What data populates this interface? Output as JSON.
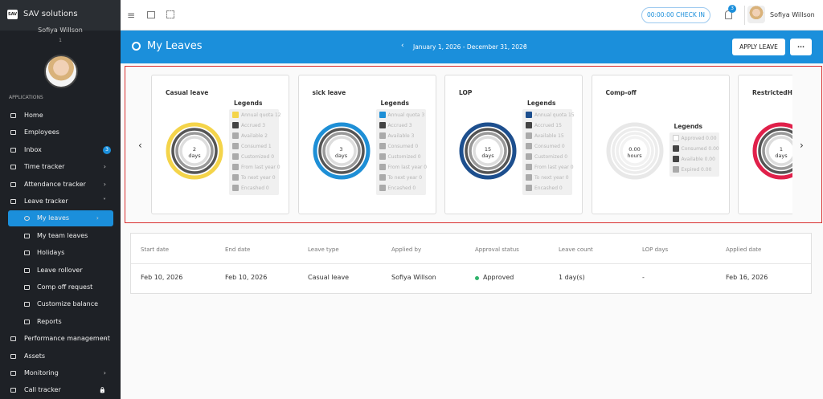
{
  "sidebar": {
    "logo": "SAV",
    "brand": "SAV solutions",
    "user_name": "Sofiya Willson",
    "user_id": "1",
    "section": "APPLICATIONS",
    "menu": [
      {
        "label": "Home"
      },
      {
        "label": "Employees"
      },
      {
        "label": "Inbox",
        "badge": "3"
      },
      {
        "label": "Time tracker",
        "arrow": "right"
      },
      {
        "label": "Attendance tracker",
        "arrow": "right"
      },
      {
        "label": "Leave tracker",
        "arrow": "down"
      }
    ],
    "leave_tracker_submenu": [
      {
        "label": "My leaves",
        "active": true,
        "arrow": "right"
      },
      {
        "label": "My team leaves"
      },
      {
        "label": "Holidays"
      },
      {
        "label": "Leave rollover"
      },
      {
        "label": "Comp off request"
      },
      {
        "label": "Customize balance"
      },
      {
        "label": "Reports"
      }
    ],
    "menu_after": [
      {
        "label": "Performance management",
        "arrow": "right"
      },
      {
        "label": "Assets"
      },
      {
        "label": "Monitoring",
        "arrow": "right"
      },
      {
        "label": "Call tracker",
        "arrow": "lock"
      }
    ]
  },
  "header": {
    "check_in": "00:00:00 CHECK IN",
    "notifications": "3",
    "user_name": "Sofiya Willson"
  },
  "banner": {
    "title": "My Leaves",
    "period": "January 1, 2026 - December 31, 2026",
    "apply_button": "APPLY LEAVE",
    "more_button": "..."
  },
  "leave_cards": [
    {
      "title": "Casual leave",
      "color": "#f4d44a",
      "center_value": "2",
      "center_unit": "days",
      "legend_title": "Legends",
      "legend": [
        "Annual quota 12",
        "Accrued 3",
        "Available 2",
        "Consumed 1",
        "Customized 0",
        "From last year 0",
        "To next year 0",
        "Encashed 0"
      ]
    },
    {
      "title": "sick leave",
      "color": "#1e8fd6",
      "center_value": "3",
      "center_unit": "days",
      "legend_title": "Legends",
      "legend": [
        "Annual quota 3",
        "Accrued 3",
        "Available 3",
        "Consumed 0",
        "Customized 0",
        "From last year 0",
        "To next year 0",
        "Encashed 0"
      ]
    },
    {
      "title": "LOP",
      "color": "#1d4f8e",
      "center_value": "15",
      "center_unit": "days",
      "legend_title": "Legends",
      "legend": [
        "Annual quota 15",
        "Accrued 15",
        "Available 15",
        "Consumed 0",
        "Customized 0",
        "From last year 0",
        "To next year 0",
        "Encashed 0"
      ]
    },
    {
      "title": "Comp-off",
      "color": "#e8e8e8",
      "center_value": "0.00",
      "center_unit": "hours",
      "legend_title": "Legends",
      "legend": [
        "Approved 0.00",
        "Consumed 0.00",
        "Available 0.00",
        "Expired 0.00"
      ]
    },
    {
      "title": "RestrictedHoli",
      "color": "#e0204a",
      "center_value": "1",
      "center_unit": "days"
    }
  ],
  "table": {
    "columns": [
      "Start date",
      "End date",
      "Leave type",
      "Applied by",
      "Approval status",
      "Leave count",
      "LOP days",
      "Applied date"
    ],
    "rows": [
      [
        "Feb 10, 2026",
        "Feb 10, 2026",
        "Casual leave",
        "Sofiya Willson",
        "Approved",
        "1 day(s)",
        "-",
        "Feb 16, 2026"
      ]
    ]
  }
}
